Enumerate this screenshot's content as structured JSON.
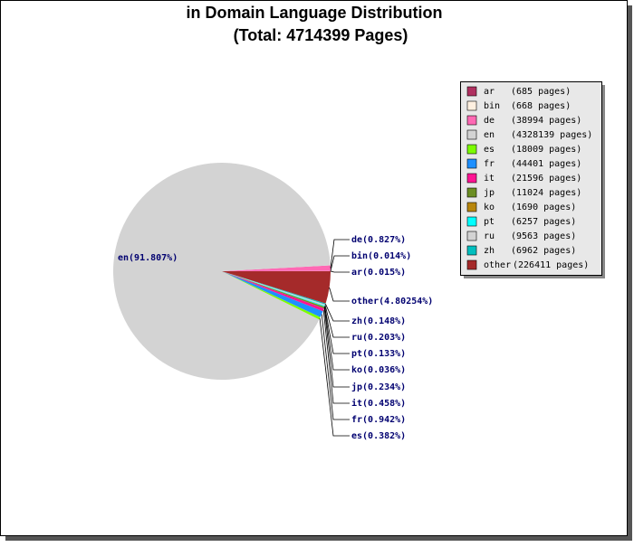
{
  "chart_data": {
    "type": "pie",
    "title": "in Domain Language Distribution",
    "subtitle": "(Total: 4714399 Pages)",
    "categories": [
      "ar",
      "bin",
      "de",
      "en",
      "es",
      "fr",
      "it",
      "jp",
      "ko",
      "pt",
      "ru",
      "zh",
      "other"
    ],
    "values": [
      685,
      668,
      38994,
      4328139,
      18009,
      44401,
      21596,
      11024,
      1690,
      6257,
      9563,
      6962,
      226411
    ],
    "value_labels": [
      "(685 pages)",
      "(668 pages)",
      "(38994 pages)",
      "(4328139 pages)",
      "(18009 pages)",
      "(44401 pages)",
      "(21596 pages)",
      "(11024 pages)",
      "(1690 pages)",
      "(6257 pages)",
      "(9563 pages)",
      "(6962 pages)",
      "(226411 pages)"
    ],
    "slice_labels": [
      "ar(0.015%)",
      "bin(0.014%)",
      "de(0.827%)",
      "en(91.807%)",
      "es(0.382%)",
      "fr(0.942%)",
      "it(0.458%)",
      "jp(0.234%)",
      "ko(0.036%)",
      "pt(0.133%)",
      "ru(0.203%)",
      "zh(0.148%)",
      "other(4.80254%)"
    ],
    "colors": [
      "#b03060",
      "#fff0e0",
      "#ff69b4",
      "#d3d3d3",
      "#7cfc00",
      "#1e90ff",
      "#ff1493",
      "#6b8e23",
      "#b8860b",
      "#00ffff",
      "#d3d3d3",
      "#00bfbf",
      "#a52a2a"
    ],
    "legend_position": "upper right"
  }
}
